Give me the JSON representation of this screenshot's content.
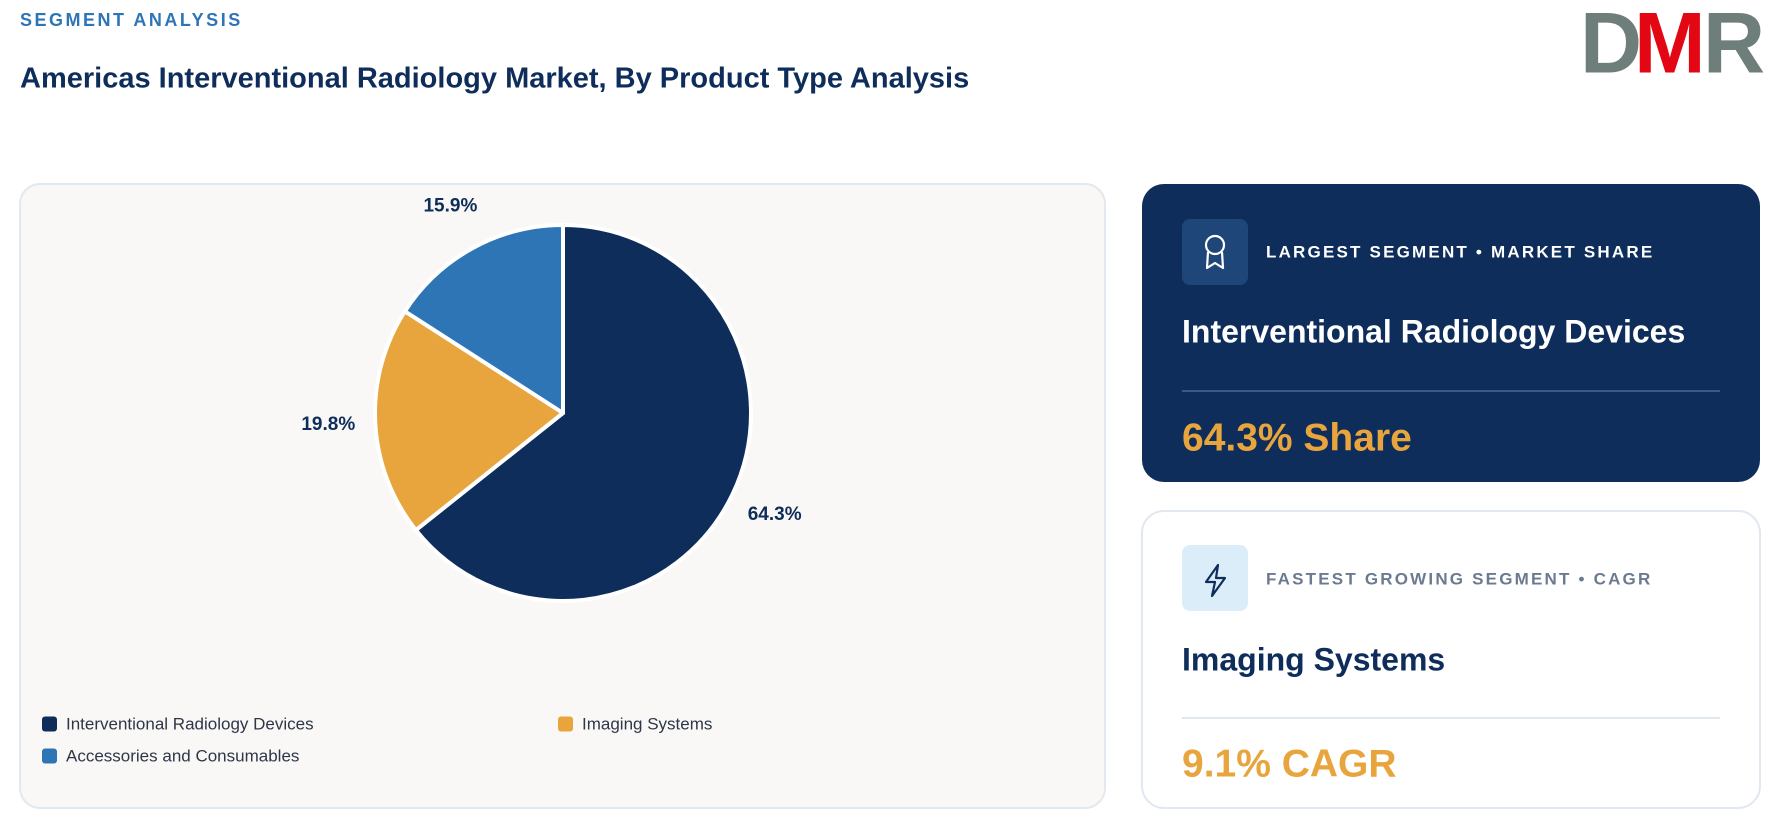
{
  "header": {
    "kicker": "SEGMENT ANALYSIS",
    "title": "Americas Interventional Radiology Market, By Product Type Analysis",
    "logo": [
      "D",
      "M",
      "R"
    ]
  },
  "chart_data": {
    "type": "pie",
    "categories": [
      "Interventional Radiology Devices",
      "Imaging Systems",
      "Accessories and Consumables"
    ],
    "values": [
      64.3,
      19.8,
      15.9
    ],
    "value_labels": [
      "64.3%",
      "19.8%",
      "15.9%"
    ],
    "colors": [
      "#0e2d5a",
      "#e8a53d",
      "#2e75b6"
    ],
    "legend": "bottom-left"
  },
  "cards": [
    {
      "label": "LARGEST SEGMENT • MARKET SHARE",
      "name": "Interventional Radiology Devices",
      "value": "64.3% Share"
    },
    {
      "label": "FASTEST GROWING SEGMENT • CAGR",
      "name": "Imaging Systems",
      "value": "9.1% CAGR"
    }
  ]
}
